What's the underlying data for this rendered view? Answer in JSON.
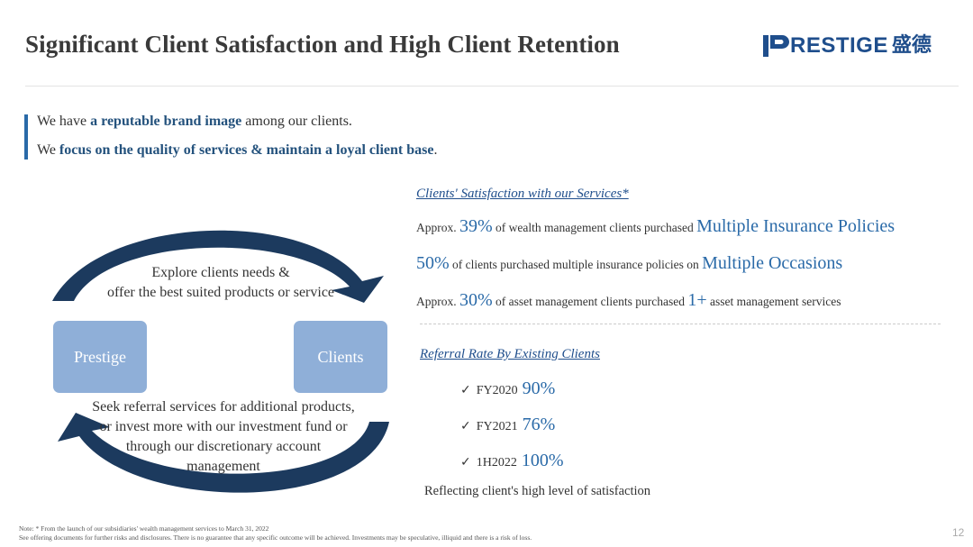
{
  "header": {
    "title": "Significant Client Satisfaction and High Client Retention",
    "logo": {
      "text": "RESTIGE",
      "cjk": "盛德",
      "color": "#1f4e8c"
    }
  },
  "intro": {
    "line1": {
      "pre": "We have ",
      "highlight": "a reputable brand image",
      "post": " among our clients."
    },
    "line2": {
      "pre": "We ",
      "highlight": "focus on the quality of services & maintain a loyal client base",
      "post": "."
    }
  },
  "cycle": {
    "left_box": "Prestige",
    "right_box": "Clients",
    "top_text": [
      "Explore clients needs &",
      "offer the best suited products or service"
    ],
    "bottom_text": [
      "Seek referral services for additional products,",
      "or invest more with our investment fund or",
      "through our discretionary account",
      "management"
    ]
  },
  "satisfaction": {
    "heading": "Clients' Satisfaction with our Services*",
    "stats": [
      {
        "prefix": "Approx. ",
        "value": "39%",
        "middle": " of wealth management clients purchased ",
        "emphasis": "Multiple Insurance Policies",
        "suffix": ""
      },
      {
        "prefix": "",
        "value": "50%",
        "middle": " of clients purchased multiple insurance policies on ",
        "emphasis": "Multiple Occasions",
        "suffix": ""
      },
      {
        "prefix": "Approx. ",
        "value": "30%",
        "middle": " of asset management clients purchased ",
        "emphasis": "1+",
        "suffix": " asset management services"
      }
    ]
  },
  "referral": {
    "heading": "Referral Rate By Existing Clients",
    "check": "✓",
    "rows": [
      {
        "period": "FY2020",
        "value": "90%"
      },
      {
        "period": "FY2021",
        "value": "76%"
      },
      {
        "period": "1H2022",
        "value": "100%"
      }
    ],
    "conclusion": "Reflecting client's high level of satisfaction"
  },
  "footer": {
    "note1": "Note: * From the launch of our subsidiaries' wealth management services to March 31, 2022",
    "note2": "See offering documents for further risks and disclosures. There is no guarantee that any specific outcome will be achieved. Investments may be speculative, illiquid and there is a risk of loss.",
    "page_number": "12"
  },
  "colors": {
    "accent": "#2a6aa8",
    "navy": "#1f4e8c",
    "box": "#8fafd8",
    "arrow": "#1c3a5e"
  }
}
